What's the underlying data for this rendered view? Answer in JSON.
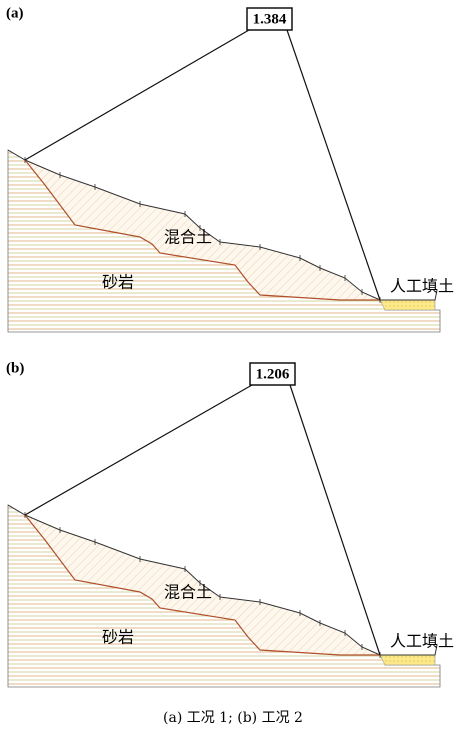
{
  "panels": [
    {
      "label": "(a)",
      "factor": "1.384",
      "mixed_soil": "混合土",
      "sandstone": "砂岩",
      "fill": "人工填土"
    },
    {
      "label": "(b)",
      "factor": "1.206",
      "mixed_soil": "混合土",
      "sandstone": "砂岩",
      "fill": "人工填土"
    }
  ],
  "caption": "(a) 工况 1; (b) 工况 2"
}
